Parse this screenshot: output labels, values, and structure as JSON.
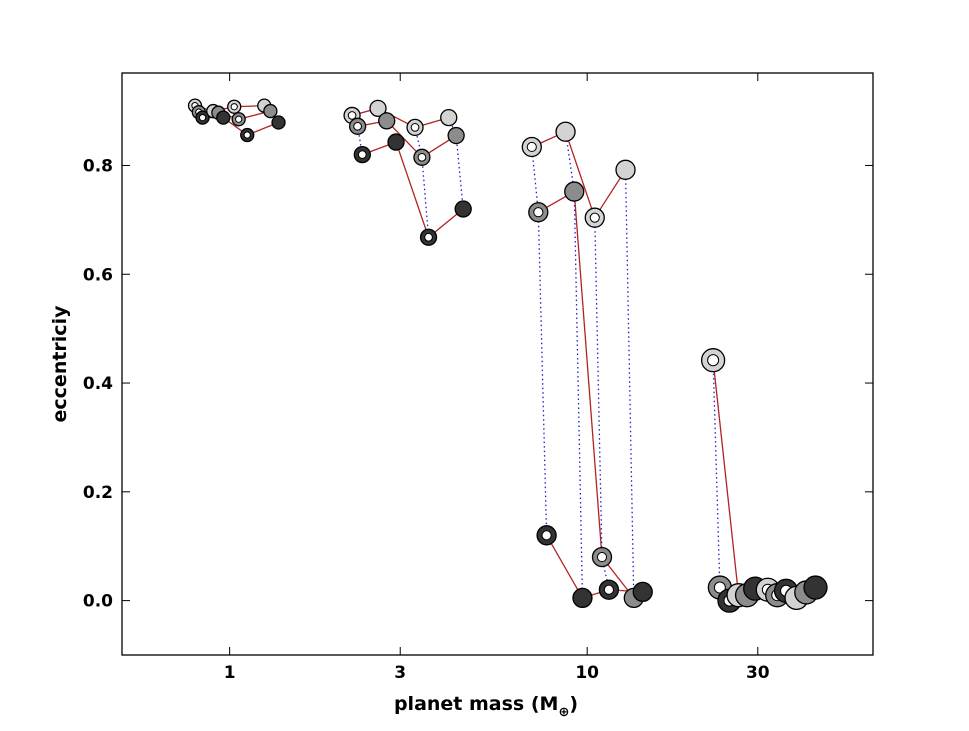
{
  "chart_data": {
    "type": "scatter",
    "title": "",
    "xlabel": "planet mass (M",
    "xlabel_sub": "⊕",
    "xlabel_close": ")",
    "ylabel": "eccentriciy",
    "xscale": "log",
    "xlim": [
      0.5,
      63
    ],
    "ylim": [
      -0.1,
      0.97
    ],
    "xticks": [
      1,
      3,
      10,
      30
    ],
    "xtick_labels": [
      "1",
      "3",
      "10",
      "30"
    ],
    "yticks": [
      0.0,
      0.2,
      0.4,
      0.6,
      0.8
    ],
    "ytick_labels": [
      "0.0",
      "0.2",
      "0.4",
      "0.6",
      "0.8"
    ],
    "grid": false,
    "legend": "none",
    "colors": {
      "light": "#d3d3d3",
      "mid": "#8c8c8c",
      "dark": "#333333",
      "track_line": "#b22222",
      "link_line": "#1f1fd0",
      "edge": "#000000"
    },
    "groups": [
      {
        "points": [
          {
            "x": 0.8,
            "y": 0.91,
            "shade": "light",
            "ring": true,
            "size": "small"
          },
          {
            "x": 0.82,
            "y": 0.898,
            "shade": "mid",
            "ring": true,
            "size": "small"
          },
          {
            "x": 0.84,
            "y": 0.888,
            "shade": "dark",
            "ring": true,
            "size": "small"
          },
          {
            "x": 0.9,
            "y": 0.9,
            "shade": "light",
            "ring": false,
            "size": "small"
          },
          {
            "x": 0.93,
            "y": 0.897,
            "shade": "mid",
            "ring": false,
            "size": "small"
          },
          {
            "x": 0.96,
            "y": 0.888,
            "shade": "dark",
            "ring": false,
            "size": "small"
          },
          {
            "x": 1.03,
            "y": 0.908,
            "shade": "light",
            "ring": true,
            "size": "small"
          },
          {
            "x": 1.06,
            "y": 0.885,
            "shade": "mid",
            "ring": true,
            "size": "small"
          },
          {
            "x": 1.12,
            "y": 0.856,
            "shade": "dark",
            "ring": true,
            "size": "small"
          },
          {
            "x": 1.25,
            "y": 0.91,
            "shade": "light",
            "ring": false,
            "size": "small"
          },
          {
            "x": 1.3,
            "y": 0.9,
            "shade": "mid",
            "ring": false,
            "size": "small"
          },
          {
            "x": 1.37,
            "y": 0.879,
            "shade": "dark",
            "ring": false,
            "size": "small"
          }
        ],
        "tracks": [
          [
            0,
            3,
            6,
            9
          ],
          [
            1,
            4,
            7,
            10
          ],
          [
            2,
            5,
            8,
            11
          ]
        ],
        "links": []
      },
      {
        "points": [
          {
            "x": 2.2,
            "y": 0.892,
            "shade": "light",
            "ring": true,
            "size": "medium"
          },
          {
            "x": 2.28,
            "y": 0.872,
            "shade": "mid",
            "ring": true,
            "size": "medium"
          },
          {
            "x": 2.35,
            "y": 0.82,
            "shade": "dark",
            "ring": true,
            "size": "medium"
          },
          {
            "x": 2.6,
            "y": 0.905,
            "shade": "light",
            "ring": false,
            "size": "medium"
          },
          {
            "x": 2.75,
            "y": 0.882,
            "shade": "mid",
            "ring": false,
            "size": "medium"
          },
          {
            "x": 2.92,
            "y": 0.843,
            "shade": "dark",
            "ring": false,
            "size": "medium"
          },
          {
            "x": 3.3,
            "y": 0.87,
            "shade": "light",
            "ring": true,
            "size": "medium"
          },
          {
            "x": 3.45,
            "y": 0.815,
            "shade": "mid",
            "ring": true,
            "size": "medium"
          },
          {
            "x": 3.6,
            "y": 0.668,
            "shade": "dark",
            "ring": true,
            "size": "medium"
          },
          {
            "x": 4.1,
            "y": 0.888,
            "shade": "light",
            "ring": false,
            "size": "medium"
          },
          {
            "x": 4.3,
            "y": 0.855,
            "shade": "mid",
            "ring": false,
            "size": "medium"
          },
          {
            "x": 4.5,
            "y": 0.72,
            "shade": "dark",
            "ring": false,
            "size": "medium"
          }
        ],
        "tracks": [
          [
            0,
            3,
            6,
            9
          ],
          [
            1,
            4,
            7,
            10
          ],
          [
            2,
            5,
            8,
            11
          ]
        ],
        "links": [
          [
            0,
            1
          ],
          [
            1,
            2
          ],
          [
            6,
            7
          ],
          [
            7,
            8
          ],
          [
            9,
            10
          ],
          [
            10,
            11
          ]
        ]
      },
      {
        "points": [
          {
            "x": 7.0,
            "y": 0.834,
            "shade": "light",
            "ring": true,
            "size": "large"
          },
          {
            "x": 7.3,
            "y": 0.714,
            "shade": "mid",
            "ring": true,
            "size": "large"
          },
          {
            "x": 7.7,
            "y": 0.12,
            "shade": "dark",
            "ring": true,
            "size": "large"
          },
          {
            "x": 8.7,
            "y": 0.862,
            "shade": "light",
            "ring": false,
            "size": "large"
          },
          {
            "x": 9.2,
            "y": 0.752,
            "shade": "mid",
            "ring": false,
            "size": "large"
          },
          {
            "x": 9.7,
            "y": 0.005,
            "shade": "dark",
            "ring": false,
            "size": "large"
          },
          {
            "x": 10.5,
            "y": 0.704,
            "shade": "light",
            "ring": true,
            "size": "large"
          },
          {
            "x": 11.0,
            "y": 0.08,
            "shade": "mid",
            "ring": true,
            "size": "large"
          },
          {
            "x": 11.5,
            "y": 0.02,
            "shade": "dark",
            "ring": true,
            "size": "large"
          },
          {
            "x": 12.8,
            "y": 0.792,
            "shade": "light",
            "ring": false,
            "size": "large"
          },
          {
            "x": 13.5,
            "y": 0.005,
            "shade": "mid",
            "ring": false,
            "size": "large"
          },
          {
            "x": 14.3,
            "y": 0.016,
            "shade": "dark",
            "ring": false,
            "size": "large"
          }
        ],
        "tracks": [
          [
            0,
            3,
            6,
            9
          ],
          [
            1,
            4,
            7,
            10
          ],
          [
            2,
            5,
            8,
            11
          ]
        ],
        "links": [
          [
            0,
            1
          ],
          [
            1,
            2
          ],
          [
            3,
            4
          ],
          [
            4,
            5
          ],
          [
            6,
            7
          ],
          [
            7,
            8
          ],
          [
            9,
            10
          ],
          [
            10,
            11
          ]
        ]
      },
      {
        "points": [
          {
            "x": 22.5,
            "y": 0.442,
            "shade": "light",
            "ring": true,
            "size": "xlarge"
          },
          {
            "x": 23.5,
            "y": 0.024,
            "shade": "mid",
            "ring": true,
            "size": "xlarge"
          },
          {
            "x": 25.0,
            "y": 0.0,
            "shade": "dark",
            "ring": true,
            "size": "xlarge"
          },
          {
            "x": 26.5,
            "y": 0.01,
            "shade": "light",
            "ring": false,
            "size": "xlarge"
          },
          {
            "x": 28.0,
            "y": 0.01,
            "shade": "mid",
            "ring": false,
            "size": "xlarge"
          },
          {
            "x": 29.5,
            "y": 0.022,
            "shade": "dark",
            "ring": false,
            "size": "xlarge"
          },
          {
            "x": 32.0,
            "y": 0.02,
            "shade": "light",
            "ring": true,
            "size": "xlarge"
          },
          {
            "x": 34.0,
            "y": 0.01,
            "shade": "mid",
            "ring": true,
            "size": "xlarge"
          },
          {
            "x": 36.0,
            "y": 0.018,
            "shade": "dark",
            "ring": true,
            "size": "xlarge"
          },
          {
            "x": 38.5,
            "y": 0.005,
            "shade": "light",
            "ring": false,
            "size": "xlarge"
          },
          {
            "x": 41.0,
            "y": 0.015,
            "shade": "mid",
            "ring": false,
            "size": "xlarge"
          },
          {
            "x": 43.5,
            "y": 0.024,
            "shade": "dark",
            "ring": false,
            "size": "xlarge"
          }
        ],
        "tracks": [
          [
            0,
            3,
            6,
            9
          ],
          [
            1,
            4,
            7,
            10
          ],
          [
            2,
            5,
            8,
            11
          ]
        ],
        "links": [
          [
            0,
            1
          ],
          [
            1,
            2
          ]
        ]
      }
    ]
  }
}
